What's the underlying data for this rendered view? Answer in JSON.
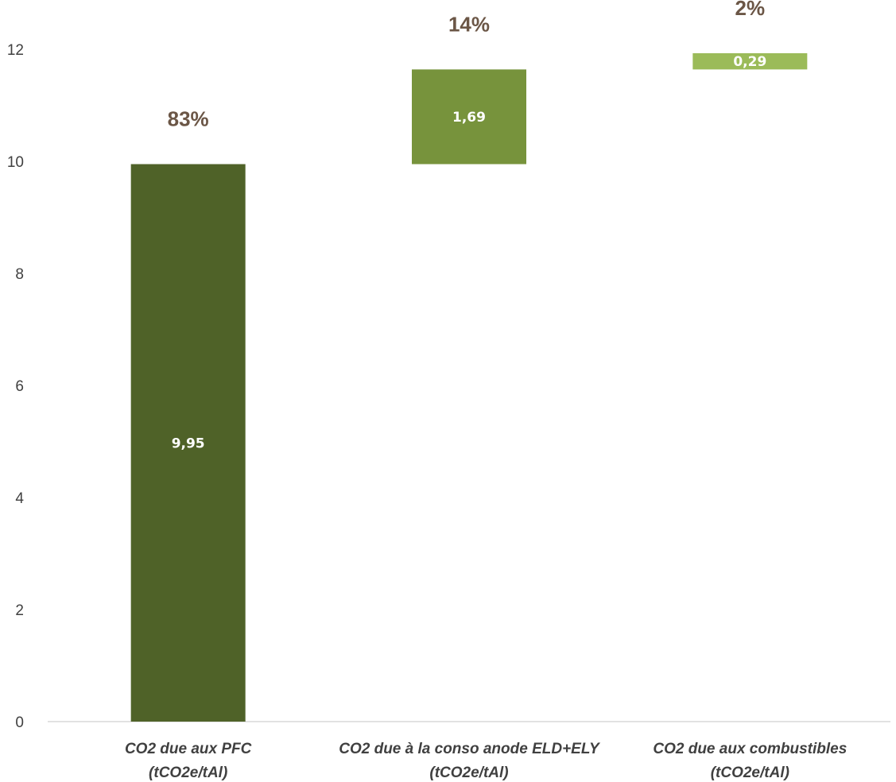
{
  "chart_data": {
    "type": "bar",
    "subtype": "waterfall",
    "title": "",
    "xlabel": "",
    "ylabel": "",
    "ylim": [
      0,
      12
    ],
    "yticks": [
      0,
      2,
      4,
      6,
      8,
      10,
      12
    ],
    "grid": false,
    "legend": "none",
    "categories": [
      {
        "line1": "CO2 due aux PFC",
        "line2": "(tCO2e/tAl)"
      },
      {
        "line1": "CO2 due à la conso anode ELD+ELY",
        "line2": "(tCO2e/tAl)"
      },
      {
        "line1": "CO2 due aux combustibles",
        "line2": "(tCO2e/tAl)"
      }
    ],
    "values": [
      9.95,
      1.69,
      0.29
    ],
    "value_labels": [
      "9,95",
      "1,69",
      "0,29"
    ],
    "percent_labels": [
      "83%",
      "14%",
      "2%"
    ],
    "colors": [
      "#4f6228",
      "#77933c",
      "#9bbb59"
    ]
  }
}
